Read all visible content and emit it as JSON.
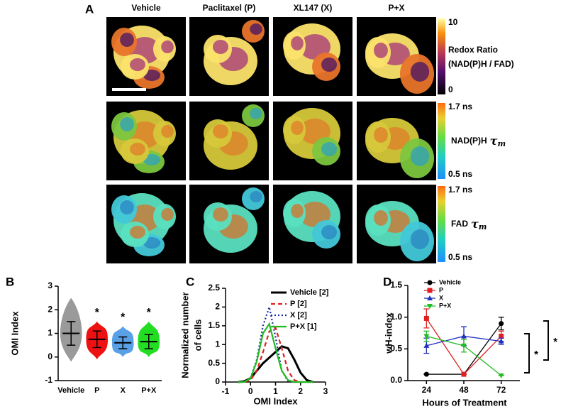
{
  "panel_labels": [
    "A",
    "B",
    "C",
    "D"
  ],
  "figure_a": {
    "columns": [
      "Vehicle",
      "Paclitaxel (P)",
      "XL147 (X)",
      "P+X"
    ],
    "colorbars": [
      {
        "top": "10",
        "label": [
          "Redox Ratio",
          "(NAD(P)H / FAD)"
        ],
        "bottom": "0"
      },
      {
        "top": "1.7 ns",
        "name": "NAD(P)H",
        "symbol": "τ",
        "sub": "m",
        "bottom": "0.5 ns"
      },
      {
        "top": "1.7 ns",
        "name": "FAD",
        "symbol": "τ",
        "sub": "m",
        "bottom": "0.5 ns"
      }
    ]
  },
  "chart_data": [
    {
      "type": "dot",
      "ylabel": "OMI Index",
      "categories": [
        "Vehicle",
        "P",
        "X",
        "P+X"
      ],
      "means": [
        1.0,
        0.75,
        0.6,
        0.65
      ],
      "sds": [
        0.5,
        0.35,
        0.25,
        0.3
      ],
      "ranges": [
        [
          -0.2,
          2.5
        ],
        [
          -0.1,
          1.5
        ],
        [
          0,
          1.3
        ],
        [
          0,
          1.5
        ]
      ],
      "colors": [
        "#9a9a9a",
        "#ee1111",
        "#5aa0e6",
        "#22dd22"
      ],
      "annotations": [
        {
          "x": "P",
          "text": "*"
        },
        {
          "x": "X",
          "text": "*"
        },
        {
          "x": "P+X",
          "text": "*"
        }
      ],
      "ylim": [
        -1,
        3
      ],
      "yticks": [
        -1,
        0,
        1,
        2,
        3
      ]
    },
    {
      "type": "line",
      "xlabel": "OMI Index",
      "ylabel": [
        "Normalized number",
        "of  cells"
      ],
      "x": [
        -0.5,
        -0.25,
        0,
        0.25,
        0.5,
        0.75,
        1,
        1.25,
        1.5,
        1.75,
        2,
        2.25,
        2.5
      ],
      "series": [
        {
          "name": "Vehicle [2]",
          "color": "#000000",
          "dash": "solid",
          "values": [
            0,
            0.02,
            0.1,
            0.3,
            0.5,
            0.65,
            0.8,
            0.95,
            0.9,
            0.6,
            0.25,
            0.05,
            0
          ]
        },
        {
          "name": "P [2]",
          "color": "#e02020",
          "dash": "dashed",
          "values": [
            0,
            0,
            0.05,
            0.3,
            0.8,
            1.35,
            1.45,
            0.9,
            0.3,
            0.05,
            0,
            0,
            0
          ]
        },
        {
          "name": "X [2]",
          "color": "#1a2aa0",
          "dash": "dotted",
          "values": [
            0,
            0,
            0.1,
            0.6,
            1.5,
            2.0,
            1.2,
            0.3,
            0.03,
            0,
            0,
            0,
            0
          ]
        },
        {
          "name": "P+X [1]",
          "color": "#22bb22",
          "dash": "solid",
          "values": [
            0,
            0,
            0.1,
            0.55,
            1.3,
            1.55,
            0.9,
            0.3,
            0.05,
            0,
            0,
            0,
            0
          ]
        }
      ],
      "xlim": [
        -1,
        3
      ],
      "xticks": [
        -1,
        0,
        1,
        2,
        3
      ],
      "ylim": [
        0,
        2.5
      ],
      "yticks": [
        0,
        0.5,
        1,
        1.5,
        2,
        2.5
      ]
    },
    {
      "type": "errorline",
      "xlabel": "Hours of Treatment",
      "ylabel": "wH-index",
      "x": [
        24,
        48,
        72
      ],
      "series": [
        {
          "name": "Vehicle",
          "color": "#000000",
          "marker": "circle",
          "values": [
            0.1,
            0.1,
            0.9
          ],
          "errors": [
            0,
            0,
            0.1
          ]
        },
        {
          "name": "P",
          "color": "#e02020",
          "marker": "square",
          "values": [
            0.98,
            0.1,
            0.7
          ],
          "errors": [
            0.15,
            0,
            0.08
          ]
        },
        {
          "name": "X",
          "color": "#2030c0",
          "marker": "triangle",
          "values": [
            0.55,
            0.7,
            0.62
          ],
          "errors": [
            0.12,
            0.15,
            0.05
          ]
        },
        {
          "name": "P+X",
          "color": "#22bb22",
          "marker": "triangle-down",
          "values": [
            0.7,
            0.55,
            0.08
          ],
          "errors": [
            0.08,
            0.1,
            0
          ]
        }
      ],
      "annotations": [
        "*",
        "*"
      ],
      "xlim": [
        12,
        84
      ],
      "xticks": [
        24,
        48,
        72
      ],
      "ylim": [
        0,
        1.5
      ],
      "yticks": [
        {
          "value": 0,
          "label": "0.0"
        },
        {
          "value": 0.5,
          "label": "0.5"
        },
        {
          "value": 1,
          "label": "1.0"
        },
        {
          "value": 1.5,
          "label": "1.5"
        }
      ]
    }
  ]
}
